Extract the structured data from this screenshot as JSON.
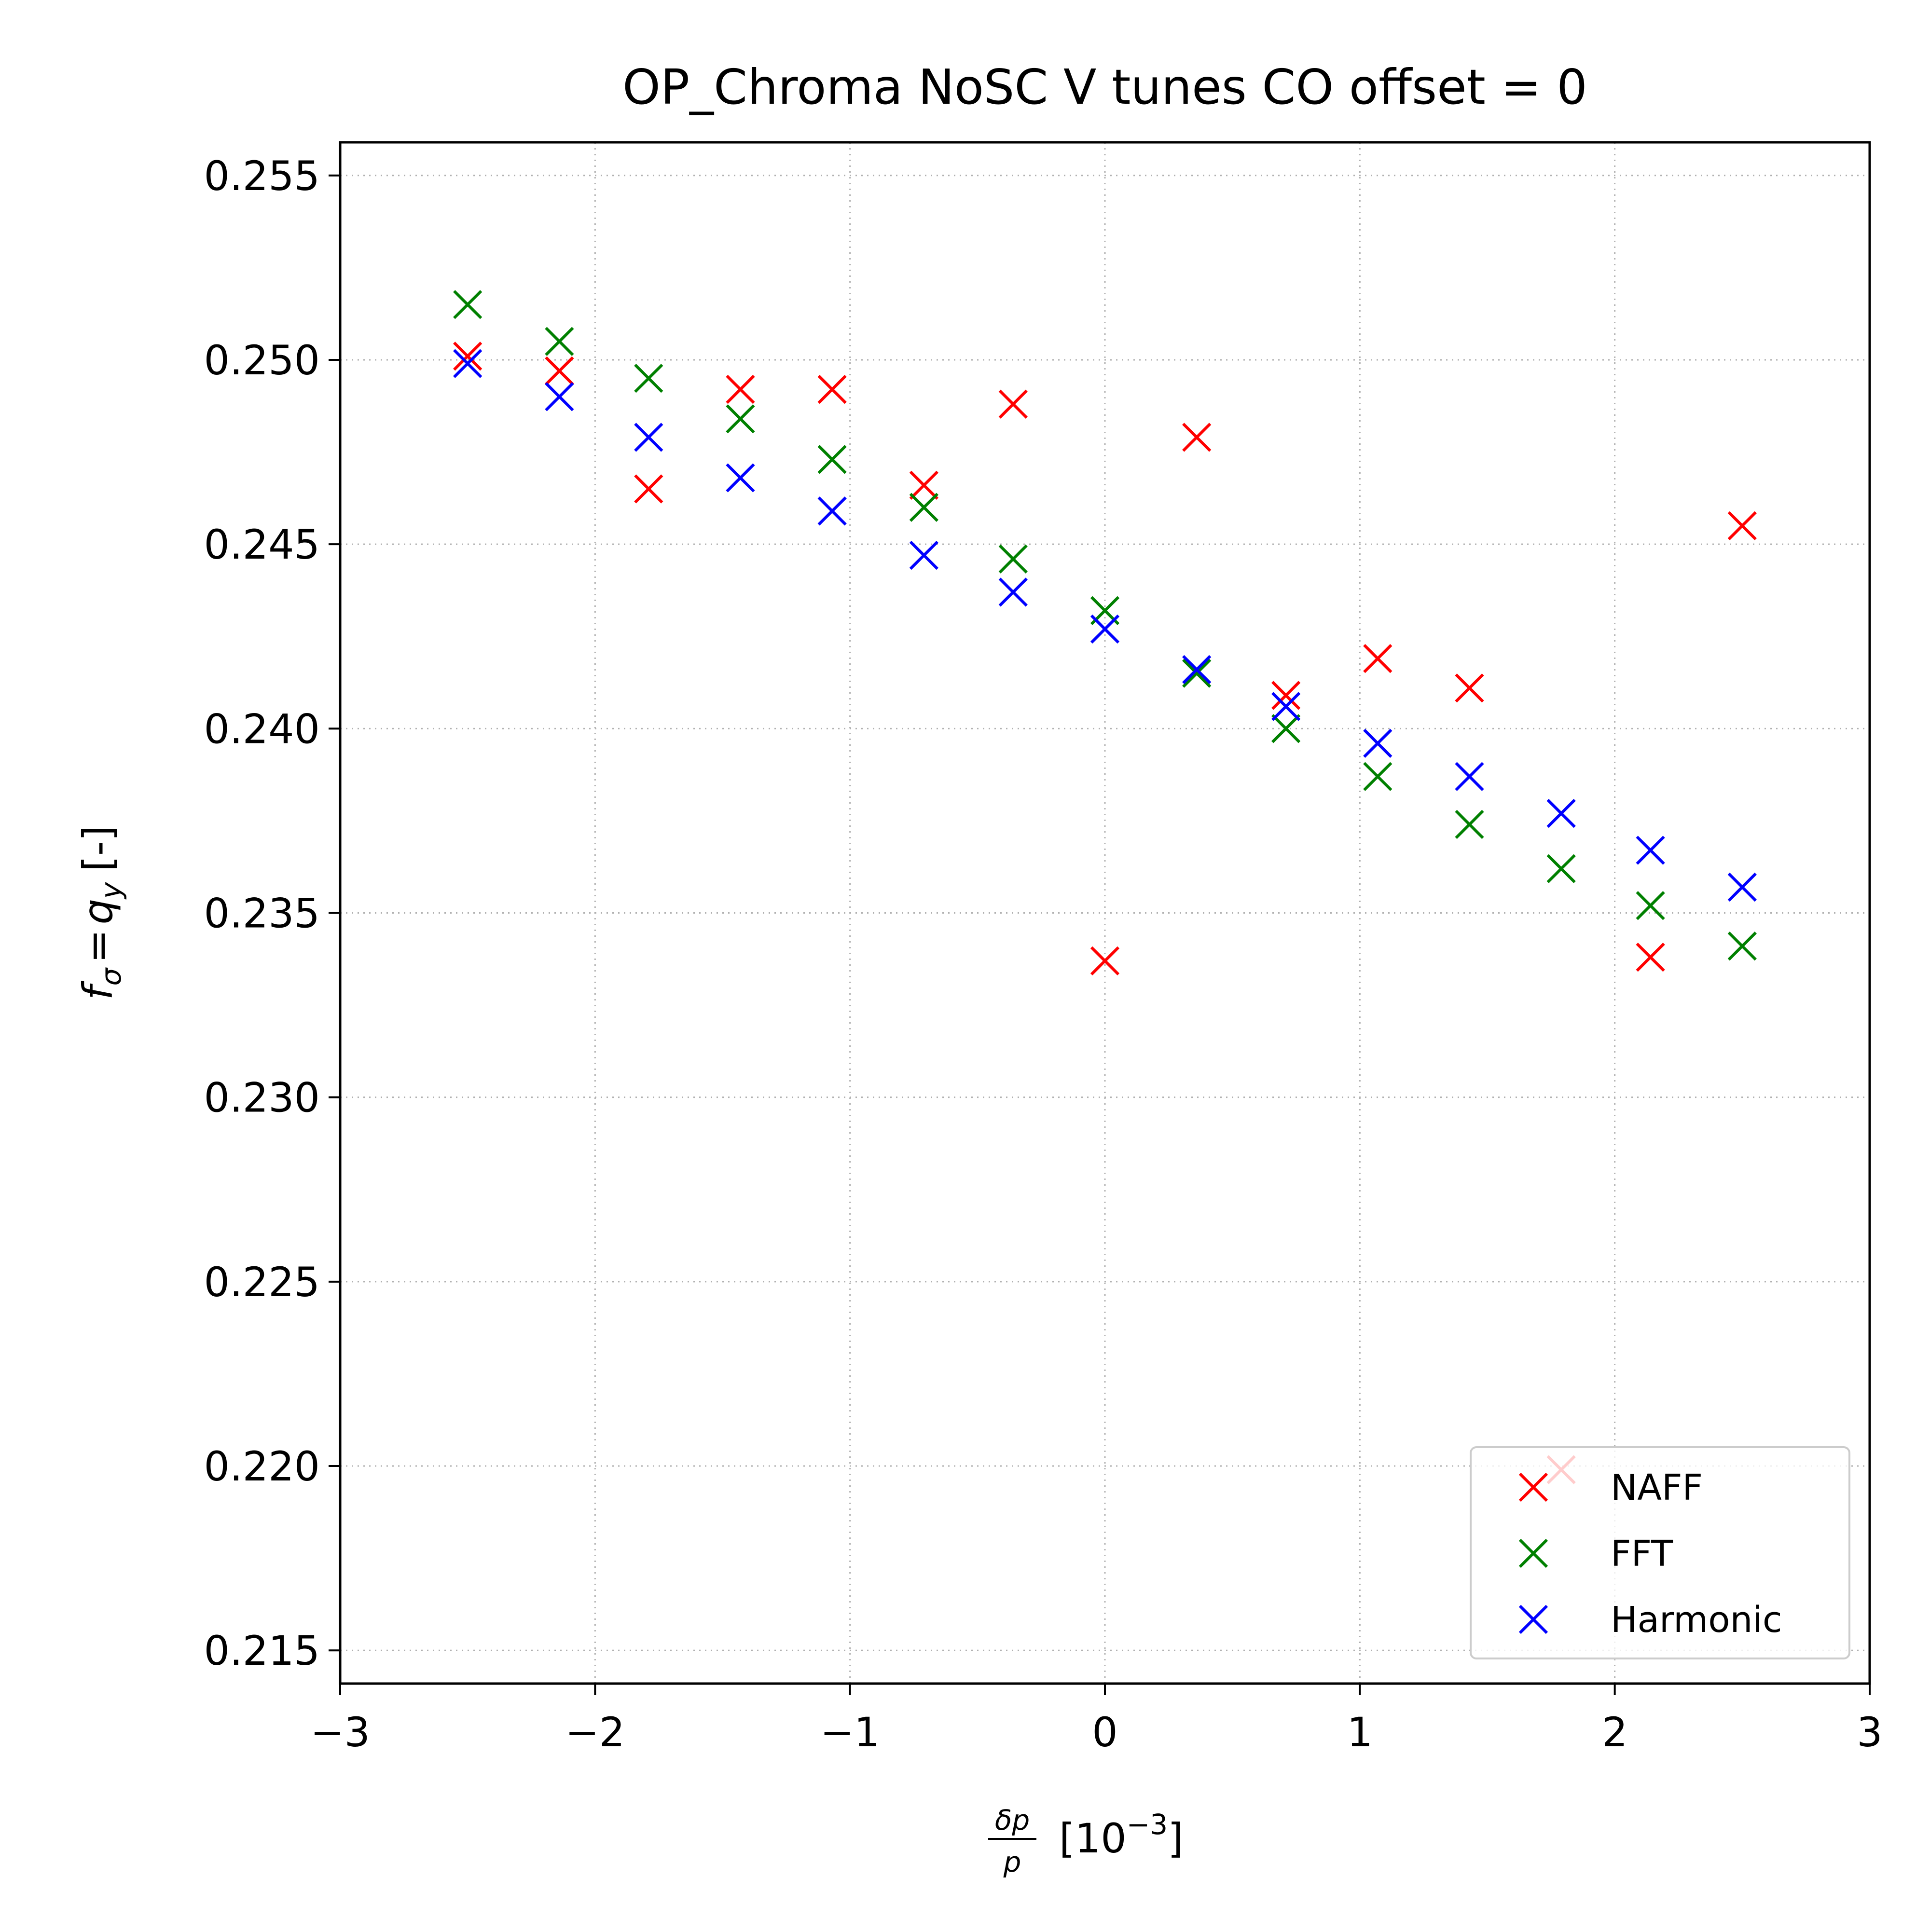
{
  "chart_data": {
    "type": "scatter",
    "title": "OP_Chroma NoSC V tunes CO offset = 0",
    "xlabel_fraction_num": "δp",
    "xlabel_fraction_den": "p",
    "xlabel_unit": "[10",
    "xlabel_exponent": "−3",
    "xlabel_close": "]",
    "ylabel_f": "f",
    "ylabel_sigma": "σ",
    "ylabel_eq": "=",
    "ylabel_q": "q",
    "ylabel_y": "y",
    "ylabel_unit": "[-]",
    "xlim": [
      -3,
      3
    ],
    "ylim": [
      0.2141,
      0.2559
    ],
    "x_ticks": [
      -3,
      -2,
      -1,
      0,
      1,
      2,
      3
    ],
    "x_tick_labels": [
      "−3",
      "−2",
      "−1",
      "0",
      "1",
      "2",
      "3"
    ],
    "y_ticks": [
      0.215,
      0.22,
      0.225,
      0.23,
      0.235,
      0.24,
      0.245,
      0.25,
      0.255
    ],
    "y_tick_labels": [
      "0.215",
      "0.220",
      "0.225",
      "0.230",
      "0.235",
      "0.240",
      "0.245",
      "0.250",
      "0.255"
    ],
    "grid": true,
    "legend_position": "bottom-right",
    "x": [
      -2.5,
      -2.14,
      -1.79,
      -1.43,
      -1.07,
      -0.71,
      -0.36,
      0.0,
      0.36,
      0.71,
      1.07,
      1.43,
      1.79,
      2.14,
      2.5
    ],
    "series": [
      {
        "name": "NAFF",
        "color": "#ff0000",
        "marker": "x",
        "values": [
          0.2501,
          0.2497,
          0.2465,
          0.2492,
          0.2492,
          0.2466,
          0.2488,
          0.2337,
          0.2479,
          0.2409,
          0.2419,
          0.2411,
          0.2199,
          0.2338,
          0.2455
        ]
      },
      {
        "name": "FFT",
        "color": "#008000",
        "marker": "x",
        "values": [
          0.2515,
          0.2505,
          0.2495,
          0.2484,
          0.2473,
          0.246,
          0.2446,
          0.2432,
          0.2415,
          0.24,
          0.2387,
          0.2374,
          0.2362,
          0.2352,
          0.2341
        ]
      },
      {
        "name": "Harmonic",
        "color": "#0000ff",
        "marker": "x",
        "values": [
          0.2499,
          0.249,
          0.2479,
          0.2468,
          0.2459,
          0.2447,
          0.2437,
          0.2427,
          0.2416,
          0.2406,
          0.2396,
          0.2387,
          0.2377,
          0.2367,
          0.2357
        ]
      }
    ]
  }
}
